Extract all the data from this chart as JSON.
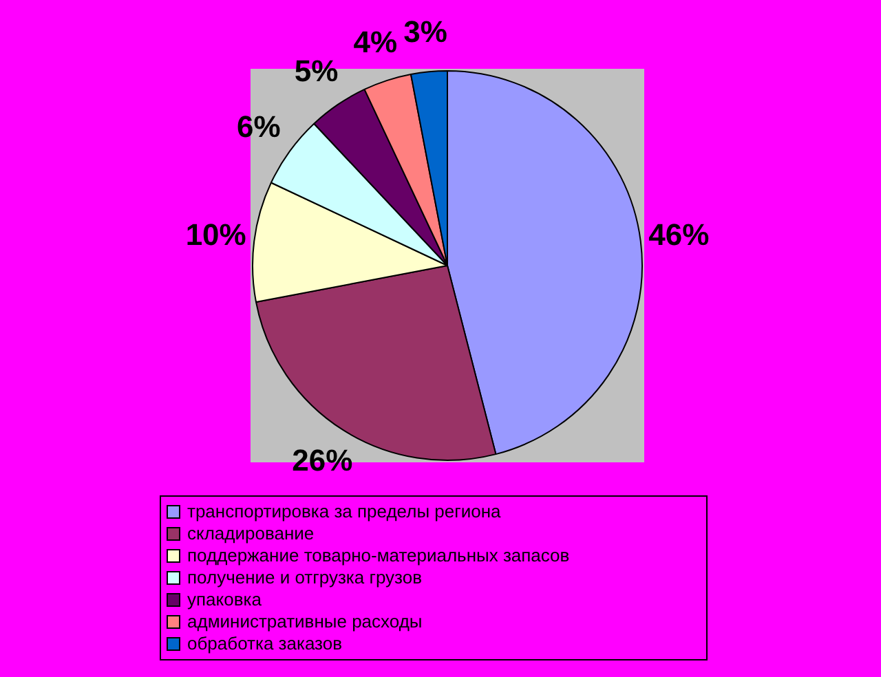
{
  "chart_data": {
    "type": "pie",
    "categories": [
      "транспортировка за пределы региона",
      "складирование",
      "поддержание товарно-материальных запасов",
      "получение и отгрузка грузов",
      "упаковка",
      "административные расходы",
      "обработка заказов"
    ],
    "values": [
      46,
      26,
      10,
      6,
      5,
      4,
      3
    ],
    "colors": [
      "#9999ff",
      "#993366",
      "#ffffcc",
      "#ccffff",
      "#660066",
      "#ff8080",
      "#0066cc"
    ],
    "value_labels": [
      "46%",
      "26%",
      "10%",
      "6%",
      "5%",
      "4%",
      "3%"
    ],
    "legend": "bottom"
  }
}
